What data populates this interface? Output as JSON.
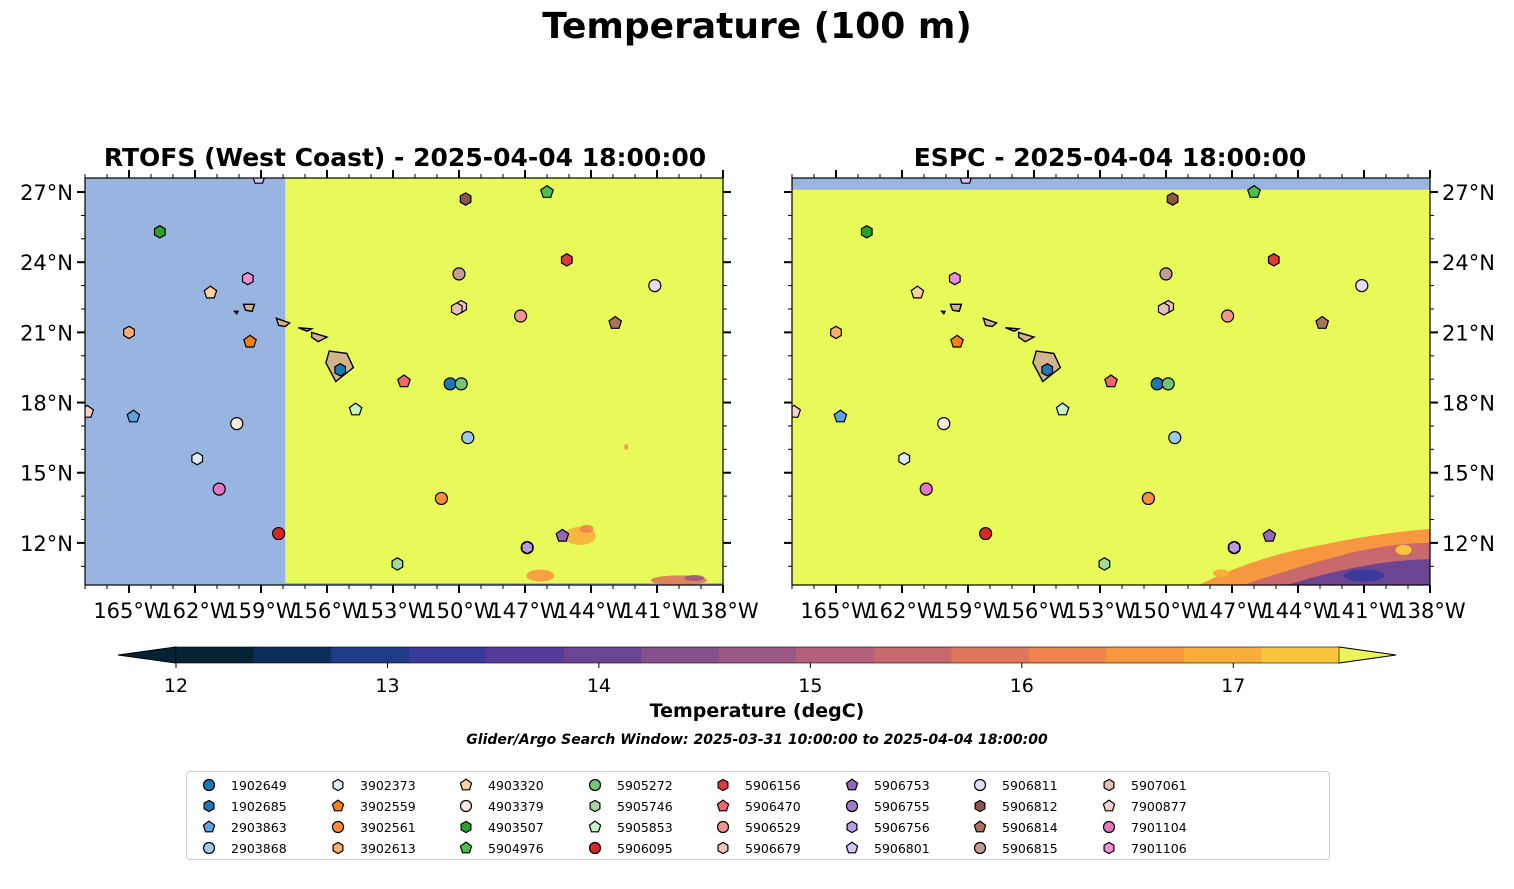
{
  "title": "Temperature (100 m)",
  "panels": [
    {
      "title": "RTOFS (West Coast) - 2025-04-04 18:00:00",
      "ytick_side": "left",
      "model": "rtofs"
    },
    {
      "title": "ESPC - 2025-04-04 18:00:00",
      "ytick_side": "right",
      "model": "espc"
    }
  ],
  "colorbar": {
    "label": "Temperature (degC)",
    "ticks": [
      "12",
      "13",
      "14",
      "15",
      "16",
      "17"
    ],
    "range": [
      11.75,
      17.75
    ],
    "colors": [
      "#062335",
      "#0c2e5a",
      "#1e3b85",
      "#3a3a9a",
      "#553c9a",
      "#6b4592",
      "#854f8c",
      "#9c5884",
      "#b3617a",
      "#c8696d",
      "#dd765d",
      "#ee844d",
      "#f79840",
      "#f9ae3c",
      "#f8c53d",
      "#e8f65a"
    ]
  },
  "search_window": "Glider/Argo Search Window: 2025-03-31 10:00:00 to 2025-04-04 18:00:00",
  "land_color": "#d2b48c",
  "ocean_colors": {
    "warm": "#e8f95a",
    "missing": "#97b5e0"
  },
  "chart_data": {
    "type": "map",
    "xlim": [
      -167,
      -138
    ],
    "ylim": [
      10.2,
      27.6
    ],
    "xticks": [
      -165,
      -162,
      -159,
      -156,
      -153,
      -150,
      -147,
      -144,
      -141,
      -138
    ],
    "xtick_labels": [
      "165°W",
      "162°W",
      "159°W",
      "156°W",
      "153°W",
      "150°W",
      "147°W",
      "144°W",
      "141°W",
      "138°W"
    ],
    "yticks": [
      12,
      15,
      18,
      21,
      24,
      27
    ],
    "ytick_labels": [
      "12°N",
      "15°N",
      "18°N",
      "21°N",
      "24°N",
      "27°N"
    ],
    "rtofs_valid_lon_min": -157.9,
    "espc_valid_lat_max": 27.1,
    "floats": [
      {
        "id": "1902649",
        "marker": "circle",
        "color": "#1f77b4",
        "lon": -150.4,
        "lat": 18.8
      },
      {
        "id": "1902685",
        "marker": "hexagon",
        "color": "#1f77b4",
        "lon": -155.4,
        "lat": 19.4
      },
      {
        "id": "2903863",
        "marker": "pentagon",
        "color": "#5fa2dd",
        "lon": -164.8,
        "lat": 17.4
      },
      {
        "id": "2903868",
        "marker": "circle",
        "color": "#9ecae9",
        "lon": -149.6,
        "lat": 16.5
      },
      {
        "id": "3902373",
        "marker": "hexagon",
        "color": "#deebf7",
        "lon": -161.9,
        "lat": 15.6
      },
      {
        "id": "3902559",
        "marker": "pentagon",
        "color": "#ff7f0e",
        "lon": -159.5,
        "lat": 20.6
      },
      {
        "id": "3902561",
        "marker": "circle",
        "color": "#fd8d3c",
        "lon": -150.8,
        "lat": 13.9
      },
      {
        "id": "3902613",
        "marker": "hexagon",
        "color": "#fdae6b",
        "lon": -165.0,
        "lat": 21.0
      },
      {
        "id": "4903320",
        "marker": "pentagon",
        "color": "#fdd0a2",
        "lon": -161.3,
        "lat": 22.7
      },
      {
        "id": "4903379",
        "marker": "circle",
        "color": "#feedde",
        "lon": -160.1,
        "lat": 17.1
      },
      {
        "id": "4903507",
        "marker": "hexagon",
        "color": "#2ca02c",
        "lon": -163.6,
        "lat": 25.3
      },
      {
        "id": "5904976",
        "marker": "pentagon",
        "color": "#4cbf4c",
        "lon": -146.0,
        "lat": 27.0
      },
      {
        "id": "5905272",
        "marker": "circle",
        "color": "#74c476",
        "lon": -149.9,
        "lat": 18.8
      },
      {
        "id": "5905746",
        "marker": "hexagon",
        "color": "#a1d99b",
        "lon": -152.8,
        "lat": 11.1
      },
      {
        "id": "5905853",
        "marker": "pentagon",
        "color": "#c7f5c4",
        "lon": -154.7,
        "lat": 17.7
      },
      {
        "id": "5906095",
        "marker": "circle",
        "color": "#d62728",
        "lon": -158.2,
        "lat": 12.4
      },
      {
        "id": "5906156",
        "marker": "hexagon",
        "color": "#e0393a",
        "lon": -145.1,
        "lat": 24.1
      },
      {
        "id": "5906470",
        "marker": "pentagon",
        "color": "#f0696a",
        "lon": -152.5,
        "lat": 18.9
      },
      {
        "id": "5906529",
        "marker": "circle",
        "color": "#f4948f",
        "lon": -147.2,
        "lat": 21.7
      },
      {
        "id": "5906679",
        "marker": "hexagon",
        "color": "#f9c0bb",
        "lon": -149.9,
        "lat": 22.1
      },
      {
        "id": "5906753",
        "marker": "pentagon",
        "color": "#9467bd",
        "lon": -145.3,
        "lat": 12.3
      },
      {
        "id": "5906755",
        "marker": "circle",
        "color": "#a07ccc",
        "lon": -146.9,
        "lat": 11.8
      },
      {
        "id": "5906756",
        "marker": "hexagon",
        "color": "#b99ce0",
        "lon": -146.9,
        "lat": 11.8
      },
      {
        "id": "5906801",
        "marker": "pentagon",
        "color": "#d6c4f2",
        "lon": -159.1,
        "lat": 27.6
      },
      {
        "id": "5906811",
        "marker": "circle",
        "color": "#e5dcf7",
        "lon": -141.1,
        "lat": 23.0
      },
      {
        "id": "5906812",
        "marker": "hexagon",
        "color": "#8c564b",
        "lon": -149.7,
        "lat": 26.7
      },
      {
        "id": "5906814",
        "marker": "pentagon",
        "color": "#a9735f",
        "lon": -142.9,
        "lat": 21.4
      },
      {
        "id": "5906815",
        "marker": "circle",
        "color": "#c49c94",
        "lon": -150.0,
        "lat": 23.5
      },
      {
        "id": "5907061",
        "marker": "hexagon",
        "color": "#e6bfb7",
        "lon": -150.1,
        "lat": 22.0
      },
      {
        "id": "7900877",
        "marker": "pentagon",
        "color": "#f7d0c9",
        "lon": -166.9,
        "lat": 17.6
      },
      {
        "id": "7901104",
        "marker": "circle",
        "color": "#e377c2",
        "lon": -160.9,
        "lat": 14.3
      },
      {
        "id": "7901106",
        "marker": "hexagon",
        "color": "#ef8fd6",
        "lon": -159.6,
        "lat": 23.3
      }
    ]
  }
}
